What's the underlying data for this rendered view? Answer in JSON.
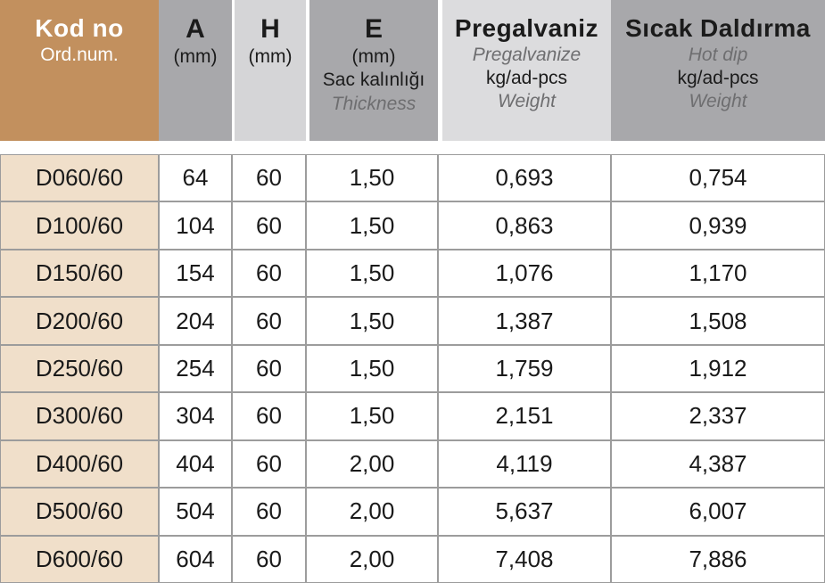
{
  "table": {
    "header": {
      "kod": {
        "title": "Kod no",
        "subtitle": "Ord.num."
      },
      "a": {
        "title": "A",
        "unit": "(mm)"
      },
      "h": {
        "title": "H",
        "unit": "(mm)"
      },
      "e": {
        "title": "E",
        "unit": "(mm)",
        "desc_tr": "Sac kalınlığı",
        "desc_en": "Thickness"
      },
      "pregalvaniz": {
        "title": "Pregalvaniz",
        "subtitle": "Pregalvanize",
        "unit": "kg/ad-pcs",
        "desc": "Weight"
      },
      "hot_dip": {
        "title": "Sıcak Daldırma",
        "subtitle": "Hot dip",
        "unit": "kg/ad-pcs",
        "desc": "Weight"
      }
    },
    "rows": [
      {
        "kod_no": "D060/60",
        "a_mm": "64",
        "h_mm": "60",
        "e_mm": "1,50",
        "pregalvaniz_kg": "0,693",
        "hot_dip_kg": "0,754"
      },
      {
        "kod_no": "D100/60",
        "a_mm": "104",
        "h_mm": "60",
        "e_mm": "1,50",
        "pregalvaniz_kg": "0,863",
        "hot_dip_kg": "0,939"
      },
      {
        "kod_no": "D150/60",
        "a_mm": "154",
        "h_mm": "60",
        "e_mm": "1,50",
        "pregalvaniz_kg": "1,076",
        "hot_dip_kg": "1,170"
      },
      {
        "kod_no": "D200/60",
        "a_mm": "204",
        "h_mm": "60",
        "e_mm": "1,50",
        "pregalvaniz_kg": "1,387",
        "hot_dip_kg": "1,508"
      },
      {
        "kod_no": "D250/60",
        "a_mm": "254",
        "h_mm": "60",
        "e_mm": "1,50",
        "pregalvaniz_kg": "1,759",
        "hot_dip_kg": "1,912"
      },
      {
        "kod_no": "D300/60",
        "a_mm": "304",
        "h_mm": "60",
        "e_mm": "1,50",
        "pregalvaniz_kg": "2,151",
        "hot_dip_kg": "2,337"
      },
      {
        "kod_no": "D400/60",
        "a_mm": "404",
        "h_mm": "60",
        "e_mm": "2,00",
        "pregalvaniz_kg": "4,119",
        "hot_dip_kg": "4,387"
      },
      {
        "kod_no": "D500/60",
        "a_mm": "504",
        "h_mm": "60",
        "e_mm": "2,00",
        "pregalvaniz_kg": "5,637",
        "hot_dip_kg": "6,007"
      },
      {
        "kod_no": "D600/60",
        "a_mm": "604",
        "h_mm": "60",
        "e_mm": "2,00",
        "pregalvaniz_kg": "7,408",
        "hot_dip_kg": "7,886"
      }
    ]
  },
  "colors": {
    "brand_brown": "#C2905E",
    "row_label_tan": "#F0DFCA",
    "header_gray": "#A8A8AB",
    "header_light_gray": "#D5D5D7",
    "pregalvaniz_light_gray": "#DCDCDE",
    "grid_border": "#9C9C9C",
    "muted_text": "#6E6E70"
  }
}
